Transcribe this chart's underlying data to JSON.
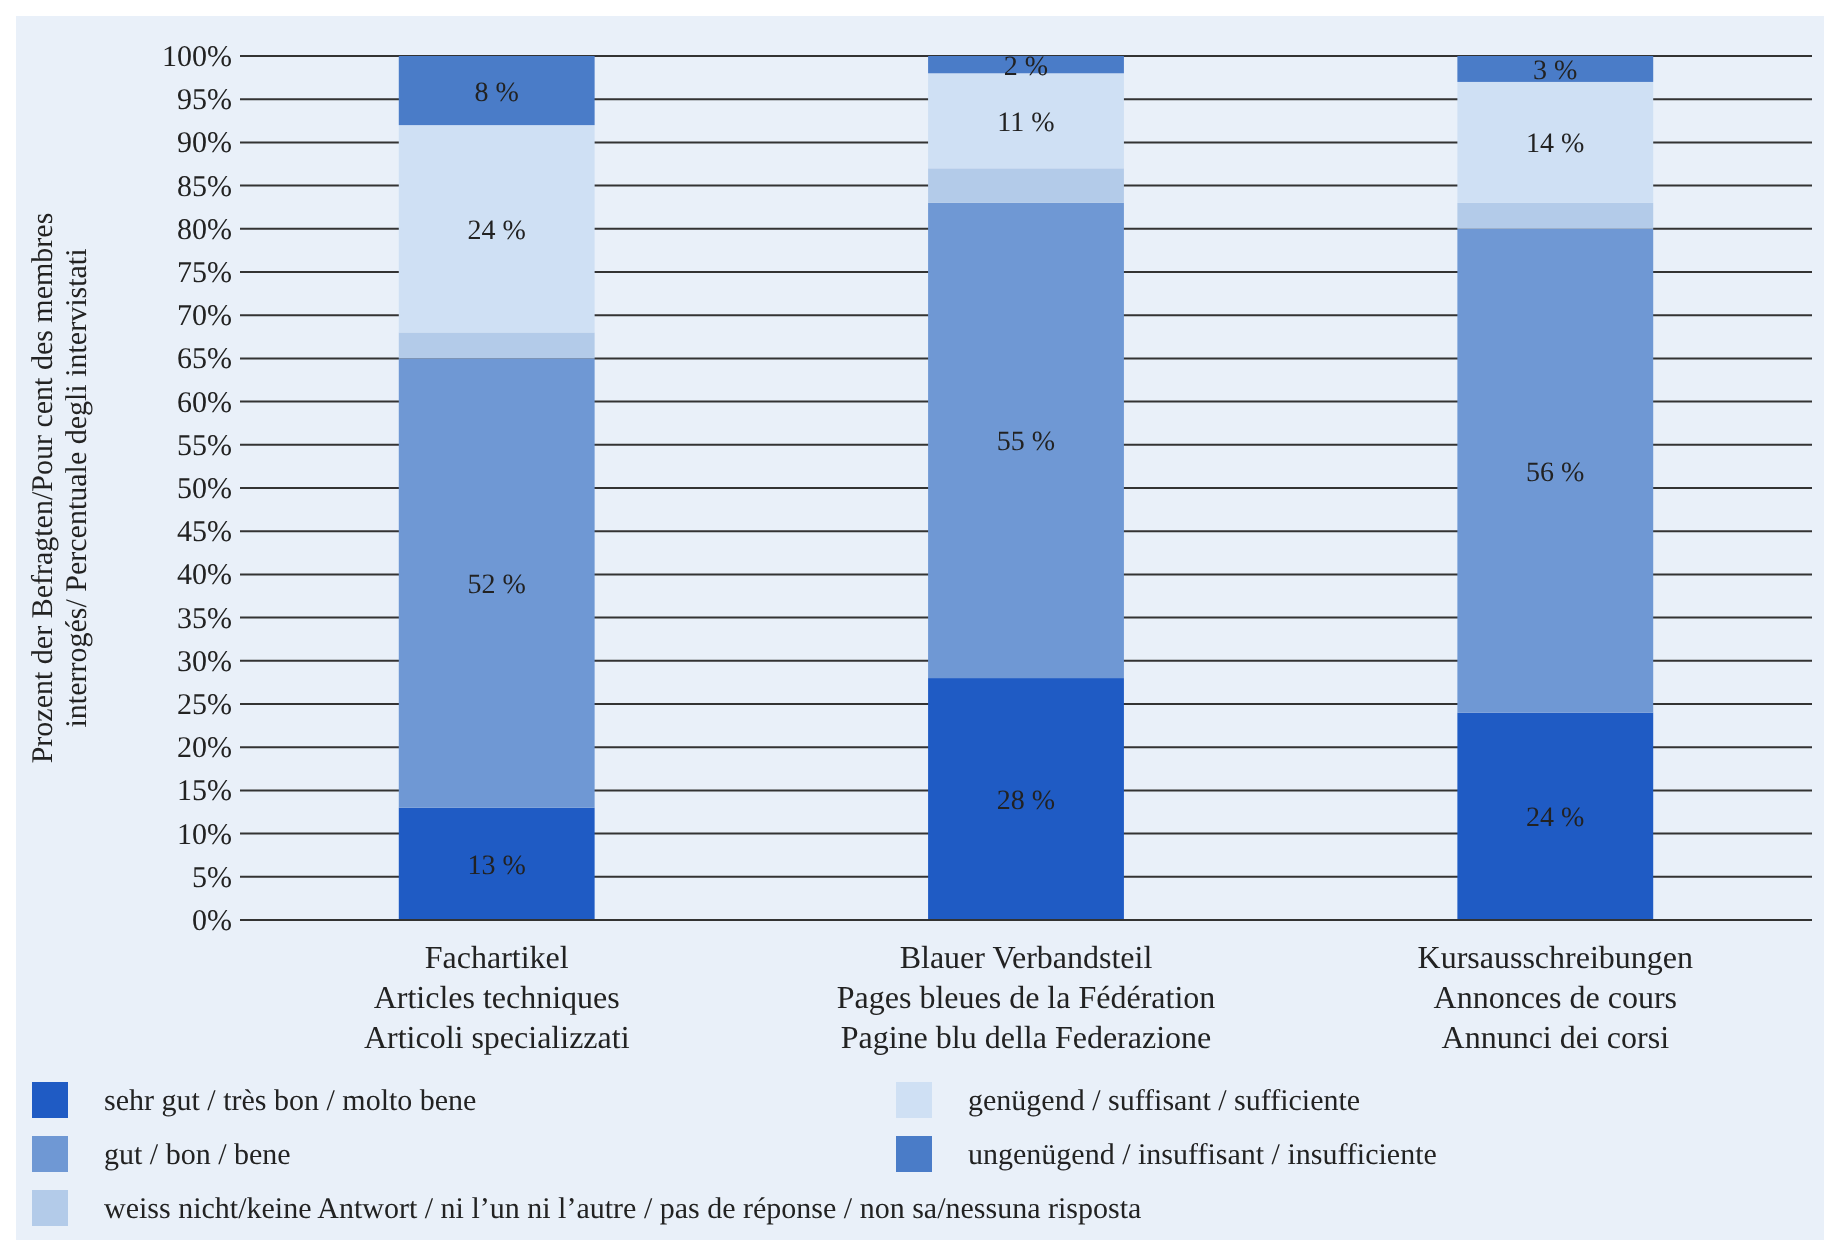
{
  "chart_data": {
    "type": "bar",
    "stacked": true,
    "ylabel": "Prozent der Befragten/Pour cent des membres interrogés/ Percentuale degli intervistati",
    "categories": [
      "Fachartikel\nArticles techniques\nArticoli specializzati",
      "Blauer Verbandsteil\nPages bleues de la Fédération\nPagine blu della Federazione",
      "Kursausschreibungen\nAnnonces de cours\nAnnunci dei corsi"
    ],
    "series": [
      {
        "name": "sehr gut / très bon / molto bene",
        "color": "#1f5bc4",
        "values": [
          13,
          28,
          24
        ],
        "value_labels": [
          "13 %",
          "28 %",
          "24 %"
        ]
      },
      {
        "name": "gut / bon / bene",
        "color": "#6f98d4",
        "values": [
          52,
          55,
          56
        ],
        "value_labels": [
          "52 %",
          "55 %",
          "56 %"
        ]
      },
      {
        "name": "weiss nicht/keine Antwort / ni l’un ni l’autre / pas de réponse / non sa/nessuna risposta",
        "color": "#b3cbe9",
        "values": [
          3,
          4,
          3
        ],
        "value_labels": [
          null,
          null,
          null
        ]
      },
      {
        "name": "genügend / suffisant / sufficiente",
        "color": "#cfe0f4",
        "values": [
          24,
          11,
          14
        ],
        "value_labels": [
          "24 %",
          "11 %",
          "14 %"
        ]
      },
      {
        "name": "ungenügend / insuffisant / insufficiente",
        "color": "#4a7cc8",
        "values": [
          8,
          2,
          3
        ],
        "value_labels": [
          "8 %",
          "2 %",
          "3 %"
        ]
      }
    ],
    "ylim": [
      0,
      100
    ],
    "yticks": [
      {
        "value": 0,
        "label": "0%"
      },
      {
        "value": 5,
        "label": "5%"
      },
      {
        "value": 10,
        "label": "10%"
      },
      {
        "value": 15,
        "label": "15%"
      },
      {
        "value": 20,
        "label": "20%"
      },
      {
        "value": 25,
        "label": "25%"
      },
      {
        "value": 30,
        "label": "30%"
      },
      {
        "value": 35,
        "label": "35%"
      },
      {
        "value": 40,
        "label": "40%"
      },
      {
        "value": 45,
        "label": "45%"
      },
      {
        "value": 50,
        "label": "50%"
      },
      {
        "value": 55,
        "label": "55%"
      },
      {
        "value": 60,
        "label": "60%"
      },
      {
        "value": 65,
        "label": "65%"
      },
      {
        "value": 70,
        "label": "70%"
      },
      {
        "value": 75,
        "label": "75%"
      },
      {
        "value": 80,
        "label": "80%"
      },
      {
        "value": 85,
        "label": "85%"
      },
      {
        "value": 90,
        "label": "90%"
      },
      {
        "value": 95,
        "label": "95%"
      },
      {
        "value": 100,
        "label": "100%"
      }
    ],
    "grid": "y",
    "legend": "bottom"
  }
}
